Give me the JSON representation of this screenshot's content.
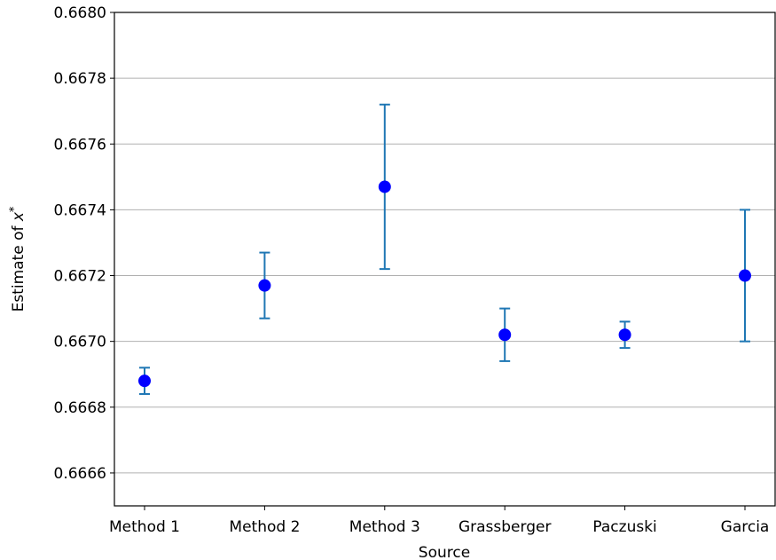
{
  "chart_data": {
    "type": "scatter",
    "variant": "errorbar",
    "categories": [
      "Method 1",
      "Method 2",
      "Method 3",
      "Grassberger",
      "Paczuski",
      "Garcia"
    ],
    "values": [
      0.66688,
      0.66717,
      0.66747,
      0.66702,
      0.66702,
      0.6672
    ],
    "errors": [
      4e-05,
      0.0001,
      0.00025,
      8e-05,
      4e-05,
      0.0002
    ],
    "xlabel": "Source",
    "ylabel": "Estimate of ",
    "ylabel_symbol": "x",
    "ylabel_superscript": "*",
    "ylim": [
      0.6665,
      0.668
    ],
    "yticks": [
      0.6666,
      0.6668,
      0.667,
      0.6672,
      0.6674,
      0.6676,
      0.6678,
      0.668
    ],
    "ytick_labels": [
      "0.6666",
      "0.6668",
      "0.6670",
      "0.6672",
      "0.6674",
      "0.6676",
      "0.6678",
      "0.6680"
    ],
    "grid": "horizontal",
    "colors": {
      "marker": "#0000ff",
      "errorbar": "#1f77b4",
      "grid": "#b0b0b0",
      "axes": "#000000"
    }
  }
}
